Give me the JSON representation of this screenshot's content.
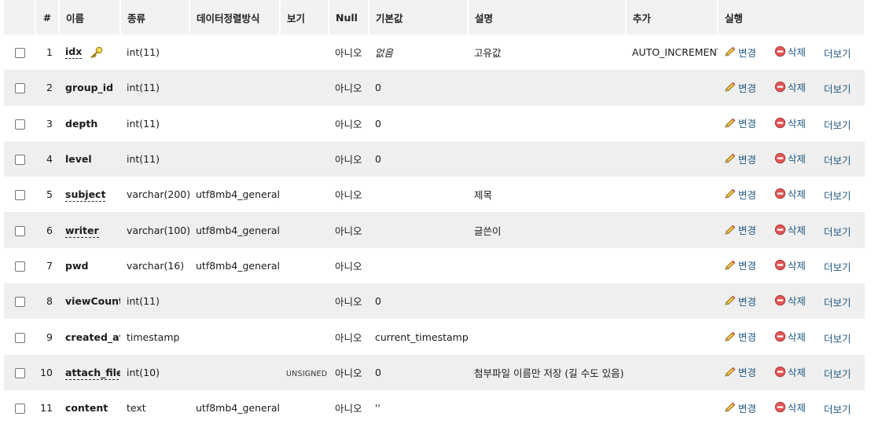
{
  "headers": {
    "num": "#",
    "name": "이름",
    "type": "종류",
    "collation": "데이터정렬방식",
    "attributes": "보기",
    "null": "Null",
    "default": "기본값",
    "comment": "설명",
    "extra": "추가",
    "action": "실행"
  },
  "actions": {
    "change": "변경",
    "drop": "삭제",
    "more": "더보기"
  },
  "icons": {
    "primary_key": "key-icon",
    "change": "pencil-icon",
    "drop": "no-entry-icon"
  },
  "rows": [
    {
      "num": "1",
      "name": "idx",
      "type": "int(11)",
      "collation": "",
      "attributes": "",
      "null": "아니오",
      "default": "없음",
      "comment": "고유값",
      "extra": "AUTO_INCREMENT",
      "primary": true,
      "underline": true
    },
    {
      "num": "2",
      "name": "group_id",
      "type": "int(11)",
      "collation": "",
      "attributes": "",
      "null": "아니오",
      "default": "0",
      "comment": "",
      "extra": "",
      "primary": false,
      "underline": false
    },
    {
      "num": "3",
      "name": "depth",
      "type": "int(11)",
      "collation": "",
      "attributes": "",
      "null": "아니오",
      "default": "0",
      "comment": "",
      "extra": "",
      "primary": false,
      "underline": false
    },
    {
      "num": "4",
      "name": "level",
      "type": "int(11)",
      "collation": "",
      "attributes": "",
      "null": "아니오",
      "default": "0",
      "comment": "",
      "extra": "",
      "primary": false,
      "underline": false
    },
    {
      "num": "5",
      "name": "subject",
      "type": "varchar(200)",
      "collation": "utf8mb4_general_ci",
      "attributes": "",
      "null": "아니오",
      "default": "",
      "comment": "제목",
      "extra": "",
      "primary": false,
      "underline": true
    },
    {
      "num": "6",
      "name": "writer",
      "type": "varchar(100)",
      "collation": "utf8mb4_general_ci",
      "attributes": "",
      "null": "아니오",
      "default": "",
      "comment": "글쓴이",
      "extra": "",
      "primary": false,
      "underline": true
    },
    {
      "num": "7",
      "name": "pwd",
      "type": "varchar(16)",
      "collation": "utf8mb4_general_ci",
      "attributes": "",
      "null": "아니오",
      "default": "",
      "comment": "",
      "extra": "",
      "primary": false,
      "underline": false
    },
    {
      "num": "8",
      "name": "viewCount",
      "type": "int(11)",
      "collation": "",
      "attributes": "",
      "null": "아니오",
      "default": "0",
      "comment": "",
      "extra": "",
      "primary": false,
      "underline": false
    },
    {
      "num": "9",
      "name": "created_at",
      "type": "timestamp",
      "collation": "",
      "attributes": "",
      "null": "아니오",
      "default": "current_timestamp()",
      "comment": "",
      "extra": "",
      "primary": false,
      "underline": false
    },
    {
      "num": "10",
      "name": "attach_file",
      "type": "int(10)",
      "collation": "",
      "attributes": "UNSIGNED",
      "null": "아니오",
      "default": "0",
      "comment": "첨부파일 이름만 저장 (길 수도 있음)",
      "extra": "",
      "primary": false,
      "underline": true
    },
    {
      "num": "11",
      "name": "content",
      "type": "text",
      "collation": "utf8mb4_general_ci",
      "attributes": "",
      "null": "아니오",
      "default": "''",
      "comment": "",
      "extra": "",
      "primary": false,
      "underline": false
    }
  ]
}
